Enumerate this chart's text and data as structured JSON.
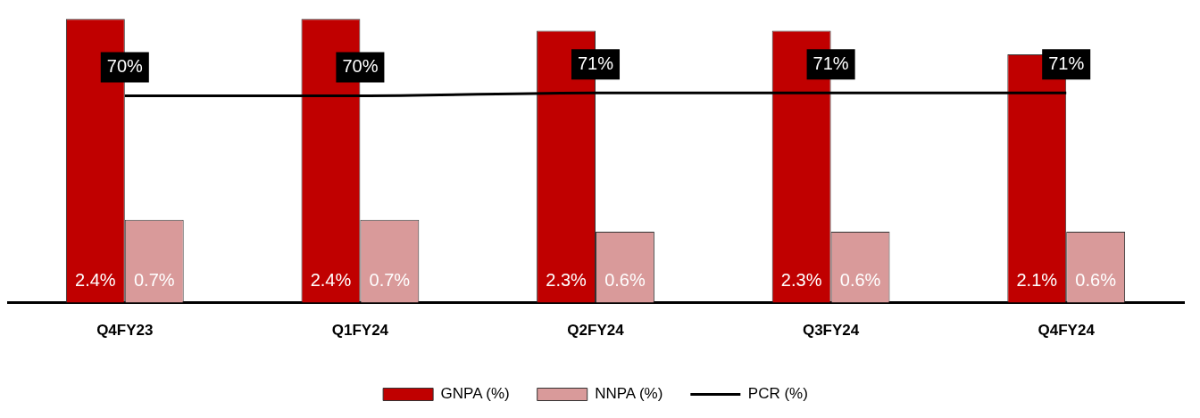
{
  "chart_data": {
    "type": "bar",
    "categories": [
      "Q4FY23",
      "Q1FY24",
      "Q2FY24",
      "Q3FY24",
      "Q4FY24"
    ],
    "series": [
      {
        "name": "GNPA (%)",
        "color": "#c00000",
        "values": [
          2.4,
          2.4,
          2.3,
          2.3,
          2.1
        ],
        "value_labels": [
          "2.4%",
          "2.4%",
          "2.3%",
          "2.3%",
          "2.1%"
        ]
      },
      {
        "name": "NNPA (%)",
        "color": "#d99a9a",
        "values": [
          0.7,
          0.7,
          0.6,
          0.6,
          0.6
        ],
        "value_labels": [
          "0.7%",
          "0.7%",
          "0.6%",
          "0.6%",
          "0.6%"
        ]
      },
      {
        "name": "PCR (%)",
        "type": "line",
        "axis": "y2",
        "color": "#000000",
        "values": [
          70,
          70,
          71,
          71,
          71
        ],
        "value_labels": [
          "70%",
          "70%",
          "71%",
          "71%",
          "71%"
        ]
      }
    ],
    "tick_labels": "x",
    "legend": "bottom",
    "marker": "none"
  }
}
